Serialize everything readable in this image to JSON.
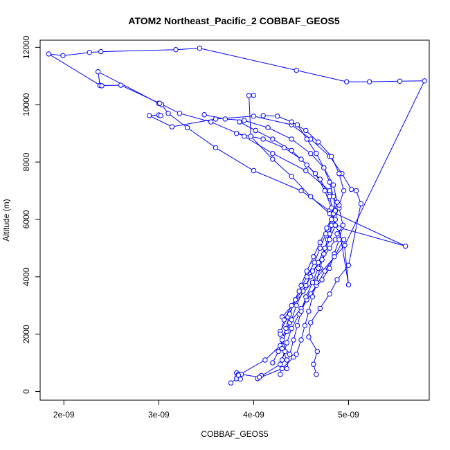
{
  "chart_data": {
    "type": "line",
    "title": "ATOM2 Northeast_Pacific_2 COBBAF_GEOS5",
    "xlabel": "COBBAF_GEOS5",
    "ylabel": "Altitude (m)",
    "xlim": [
      1.75e-09,
      5.85e-09
    ],
    "ylim": [
      -300,
      12250
    ],
    "x_ticks": [
      2e-09,
      3e-09,
      4e-09,
      5e-09
    ],
    "x_tick_labels": [
      "2e-09",
      "3e-09",
      "4e-09",
      "5e-09"
    ],
    "y_ticks": [
      0,
      2000,
      4000,
      6000,
      8000,
      10000,
      12000
    ],
    "y_tick_labels": [
      "0",
      "2000",
      "4000",
      "6000",
      "8000",
      "10000",
      "12000"
    ],
    "grid": false,
    "legend": "none",
    "series_color": "#0000ff",
    "marker": "open-circle",
    "series": [
      {
        "x": [
          3.76e-09,
          3.84e-09,
          3.82e-09,
          3.84e-09,
          3.86e-09,
          3.85e-09,
          3.83e-09,
          3.87e-09,
          4.06e-09,
          4.04e-09,
          4.3e-09,
          4.42e-09,
          4.3e-09,
          4.28e-09,
          4.36e-09,
          4.44e-09,
          4.55e-09,
          4.62e-09,
          4.72e-09,
          4.8e-09,
          4.86e-09,
          4.88e-09,
          4.92e-09,
          5.6e-09,
          4.8e-09,
          4.5e-09,
          4e-09,
          3.6e-09,
          3.3e-09,
          3.1e-09,
          3.03e-09,
          3e-09,
          2.36e-09,
          2.38e-09,
          1.84e-09,
          1.99e-09,
          2.27e-09,
          2.39e-09,
          3.18e-09,
          3.43e-09,
          4.45e-09,
          4.98e-09,
          5.22e-09,
          5.54e-09,
          5.8e-09,
          4.96e-09,
          4.3e-09
        ],
        "y": [
          300,
          500,
          650,
          600,
          580,
          550,
          550,
          600,
          500,
          450,
          800,
          1200,
          1600,
          2100,
          2600,
          3200,
          3700,
          4200,
          4600,
          5000,
          5300,
          5500,
          5700,
          5070,
          6300,
          7000,
          7700,
          8500,
          9200,
          9700,
          10000,
          10050,
          11150,
          10680,
          11770,
          11710,
          11820,
          11850,
          11920,
          11970,
          11200,
          10800,
          10800,
          10820,
          10830,
          5100,
          2600
        ]
      },
      {
        "x": [
          4.08e-09,
          4.06e-09,
          4.28e-09,
          4.33e-09,
          4.3e-09,
          4.38e-09,
          4.5e-09,
          4.6e-09,
          4.72e-09,
          4.8e-09,
          4.85e-09,
          4.9e-09,
          4.94e-09,
          4.9e-09,
          4.8e-09,
          4.55e-09,
          4.2e-09,
          3.9e-09,
          3.55e-09,
          3.22e-09,
          3.01e-09,
          2.6e-09,
          2.38e-09,
          2.4e-09
        ],
        "y": [
          560,
          500,
          950,
          1400,
          1900,
          2400,
          2900,
          3400,
          3900,
          4300,
          4800,
          5300,
          5800,
          6400,
          7000,
          7700,
          8300,
          8900,
          9400,
          9700,
          10050,
          10680,
          10670,
          10660
        ]
      },
      {
        "x": [
          4.66e-09,
          4.63e-09,
          4.67e-09,
          4.58e-09,
          4.6e-09,
          4.7e-09,
          4.8e-09,
          4.88e-09,
          5e-09,
          5.13e-09,
          5.08e-09,
          5.03e-09,
          4.93e-09,
          4.8e-09,
          4.6e-09,
          4.4e-09,
          4e-09,
          3.6e-09,
          3.14e-09,
          2.9e-09,
          3e-09,
          3.02e-09
        ],
        "y": [
          600,
          950,
          1400,
          1900,
          2400,
          2900,
          3400,
          3900,
          4400,
          6550,
          7000,
          7050,
          7600,
          8200,
          8800,
          9300,
          9600,
          9500,
          9230,
          9620,
          9640,
          9620
        ]
      },
      {
        "x": [
          4.28e-09,
          4.3e-09,
          4.35e-09,
          4.4e-09,
          4.48e-09,
          4.56e-09,
          4.66e-09,
          4.75e-09,
          4.85e-09,
          4.95e-09,
          5e-09,
          4.9e-09,
          4.8e-09,
          4.6e-09,
          4.4e-09,
          4.2e-09,
          3.97e-09,
          3.95e-09,
          4e-09
        ],
        "y": [
          600,
          1100,
          1700,
          2200,
          2700,
          3200,
          3700,
          4200,
          4700,
          5300,
          3720,
          5700,
          6200,
          6800,
          7500,
          8100,
          8900,
          10320,
          10330
        ]
      },
      {
        "x": [
          3.82e-09,
          3.86e-09,
          3.84e-09,
          4.12e-09,
          4.28e-09,
          4.35e-09,
          4.4e-09,
          4.45e-09,
          4.52e-09,
          4.6e-09,
          4.68e-09,
          4.75e-09,
          4.8e-09,
          4.86e-09,
          4.9e-09,
          4.95e-09,
          4.9e-09,
          4.82e-09,
          4.68e-09,
          4.55e-09,
          4.4e-09,
          4.25e-09,
          4.1e-09
        ],
        "y": [
          450,
          430,
          570,
          1100,
          1600,
          2100,
          2500,
          3000,
          3500,
          4000,
          4500,
          5000,
          5500,
          6000,
          6500,
          7000,
          7600,
          8200,
          8700,
          9100,
          9400,
          9600,
          9620
        ]
      },
      {
        "x": [
          4.35e-09,
          4.3e-09,
          4.28e-09,
          4.32e-09,
          4.4e-09,
          4.48e-09,
          4.56e-09,
          4.64e-09,
          4.7e-09,
          4.76e-09,
          4.82e-09,
          4.88e-09,
          4.84e-09,
          4.74e-09,
          4.6e-09,
          4.4e-09,
          4.15e-09,
          3.9e-09,
          3.7e-09,
          3.48e-09
        ],
        "y": [
          1100,
          1500,
          2000,
          2500,
          3000,
          3500,
          4000,
          4500,
          5000,
          5500,
          6000,
          6600,
          7200,
          7800,
          8300,
          8800,
          9200,
          9450,
          9500,
          9650
        ]
      },
      {
        "x": [
          4.2e-09,
          4.26e-09,
          4.3e-09,
          4.34e-09,
          4.38e-09,
          4.44e-09,
          4.5e-09,
          4.56e-09,
          4.63e-09,
          4.7e-09,
          4.77e-09,
          4.84e-09,
          4.8e-09,
          4.7e-09,
          4.56e-09,
          4.4e-09,
          4.2e-09,
          4.02e-09,
          3.85e-09
        ],
        "y": [
          1000,
          1400,
          1800,
          2200,
          2700,
          3200,
          3700,
          4200,
          4700,
          5200,
          5700,
          6200,
          6800,
          7400,
          7900,
          8400,
          8800,
          9100,
          9400
        ]
      },
      {
        "x": [
          4.45e-09,
          4.5e-09,
          4.54e-09,
          4.58e-09,
          4.62e-09,
          4.66e-09,
          4.7e-09,
          4.74e-09,
          4.78e-09,
          4.82e-09,
          4.86e-09,
          4.84e-09,
          4.8e-09,
          4.74e-09,
          4.66e-09,
          4.56e-09,
          4.46e-09
        ],
        "y": [
          1300,
          1800,
          2300,
          2800,
          3300,
          3800,
          4300,
          4800,
          5300,
          5800,
          6300,
          6800,
          7300,
          7800,
          8300,
          8800,
          9300
        ]
      },
      {
        "x": [
          4.35e-09,
          4.38e-09,
          4.42e-09,
          4.46e-09,
          4.5e-09,
          4.55e-09,
          4.62e-09,
          4.68e-09,
          4.74e-09,
          4.8e-09,
          4.86e-09,
          4.82e-09,
          4.75e-09,
          4.65e-09,
          4.5e-09,
          4.32e-09,
          4.1e-09,
          3.82e-09
        ],
        "y": [
          800,
          1300,
          1800,
          2300,
          2800,
          3300,
          3800,
          4300,
          4800,
          5300,
          5800,
          6400,
          7000,
          7600,
          8100,
          8500,
          8800,
          9000
        ]
      }
    ]
  }
}
